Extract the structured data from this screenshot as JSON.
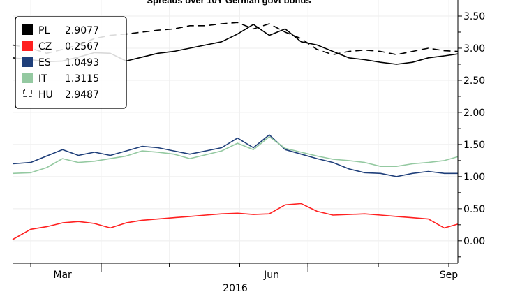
{
  "chart_data": {
    "type": "line",
    "title": "Spreads over 10Y German govt bonds",
    "xlabel": "2016",
    "ylabel": "",
    "x_tick_labels": [
      "Mar",
      "Jun",
      "Sep"
    ],
    "x_range": [
      "2016-02-22",
      "2016-09-05"
    ],
    "y_axis_side": "right",
    "ylim": [
      -0.35,
      3.75
    ],
    "y_ticks": [
      0.0,
      0.5,
      1.0,
      1.5,
      2.0,
      2.5,
      3.0,
      3.5
    ],
    "y_tick_labels": [
      "0.00",
      "0.50",
      "1.00",
      "1.50",
      "2.00",
      "2.50",
      "3.00",
      "3.50"
    ],
    "grid": true,
    "legend_position": "top-left",
    "x": [
      "2016-02-22",
      "2016-03-01",
      "2016-03-08",
      "2016-03-15",
      "2016-03-22",
      "2016-03-29",
      "2016-04-05",
      "2016-04-12",
      "2016-04-19",
      "2016-04-26",
      "2016-05-03",
      "2016-05-10",
      "2016-05-17",
      "2016-05-24",
      "2016-05-31",
      "2016-06-07",
      "2016-06-14",
      "2016-06-21",
      "2016-06-28",
      "2016-07-05",
      "2016-07-12",
      "2016-07-19",
      "2016-07-26",
      "2016-08-02",
      "2016-08-09",
      "2016-08-16",
      "2016-08-23",
      "2016-08-30",
      "2016-09-05"
    ],
    "series": [
      {
        "name": "PL",
        "latest": "2.9077",
        "color": "#000000",
        "style": "solid",
        "values": [
          2.85,
          2.82,
          2.79,
          2.8,
          2.86,
          2.93,
          2.92,
          2.8,
          2.86,
          2.92,
          2.95,
          3.0,
          3.05,
          3.1,
          3.22,
          3.37,
          3.2,
          3.3,
          3.1,
          3.05,
          2.95,
          2.85,
          2.82,
          2.78,
          2.75,
          2.78,
          2.85,
          2.88,
          2.91
        ]
      },
      {
        "name": "CZ",
        "latest": "0.2567",
        "color": "#ff2020",
        "style": "solid",
        "values": [
          0.02,
          0.18,
          0.22,
          0.28,
          0.3,
          0.27,
          0.2,
          0.28,
          0.32,
          0.34,
          0.36,
          0.38,
          0.4,
          0.42,
          0.43,
          0.41,
          0.42,
          0.56,
          0.58,
          0.46,
          0.4,
          0.41,
          0.42,
          0.4,
          0.38,
          0.36,
          0.34,
          0.2,
          0.26
        ]
      },
      {
        "name": "ES",
        "latest": "1.0493",
        "color": "#1f3f7a",
        "style": "solid",
        "values": [
          1.2,
          1.22,
          1.32,
          1.42,
          1.33,
          1.38,
          1.33,
          1.4,
          1.47,
          1.45,
          1.4,
          1.35,
          1.4,
          1.45,
          1.6,
          1.45,
          1.65,
          1.42,
          1.35,
          1.28,
          1.22,
          1.12,
          1.06,
          1.05,
          1.0,
          1.05,
          1.08,
          1.05,
          1.05
        ]
      },
      {
        "name": "IT",
        "latest": "1.3115",
        "color": "#94c9a1",
        "style": "solid",
        "values": [
          1.05,
          1.06,
          1.14,
          1.28,
          1.22,
          1.24,
          1.28,
          1.32,
          1.4,
          1.38,
          1.35,
          1.28,
          1.34,
          1.4,
          1.52,
          1.42,
          1.62,
          1.44,
          1.38,
          1.32,
          1.27,
          1.25,
          1.22,
          1.16,
          1.16,
          1.2,
          1.22,
          1.25,
          1.31
        ]
      },
      {
        "name": "HU",
        "latest": "2.9487",
        "color": "#000000",
        "style": "dashed",
        "values": [
          3.05,
          3.0,
          2.92,
          2.98,
          3.05,
          3.15,
          3.2,
          3.22,
          3.25,
          3.28,
          3.3,
          3.35,
          3.35,
          3.38,
          3.4,
          3.3,
          3.38,
          3.25,
          3.15,
          2.98,
          2.9,
          2.95,
          2.97,
          2.95,
          2.9,
          2.95,
          3.0,
          2.96,
          2.95
        ]
      }
    ]
  }
}
